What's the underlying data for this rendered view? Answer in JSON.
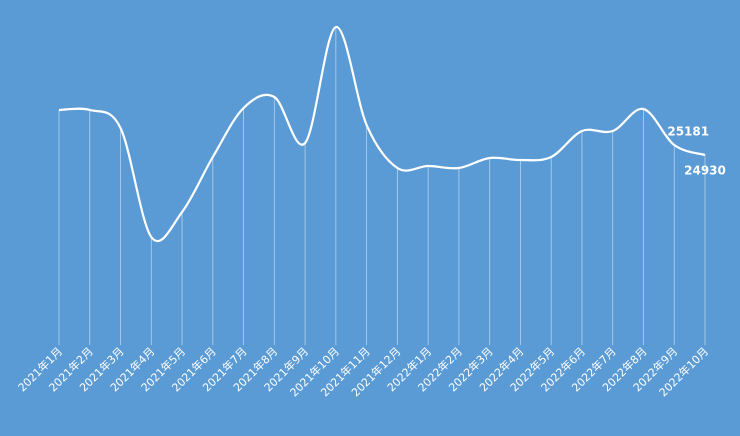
{
  "chart_data": {
    "type": "line",
    "categories": [
      "2021年1月",
      "2021年2月",
      "2021年3月",
      "2021年4月",
      "2021年5月",
      "2021年6月",
      "2021年7月",
      "2021年8月",
      "2021年9月",
      "2021年10月",
      "2021年11月",
      "2021年12月",
      "2022年1月",
      "2022年2月",
      "2022年3月",
      "2022年4月",
      "2022年5月",
      "2022年6月",
      "2022年7月",
      "2022年8月",
      "2022年9月",
      "2022年10月"
    ],
    "values": [
      26060,
      26060,
      25608,
      22872,
      23499,
      24880,
      26110,
      26386,
      25231,
      28143,
      25683,
      24604,
      24654,
      24604,
      24855,
      24805,
      24880,
      25532,
      25532,
      26085,
      25181,
      24930
    ],
    "color": "#ffffff",
    "background": "#5b9bd5",
    "labeled_points": [
      20,
      21
    ]
  }
}
